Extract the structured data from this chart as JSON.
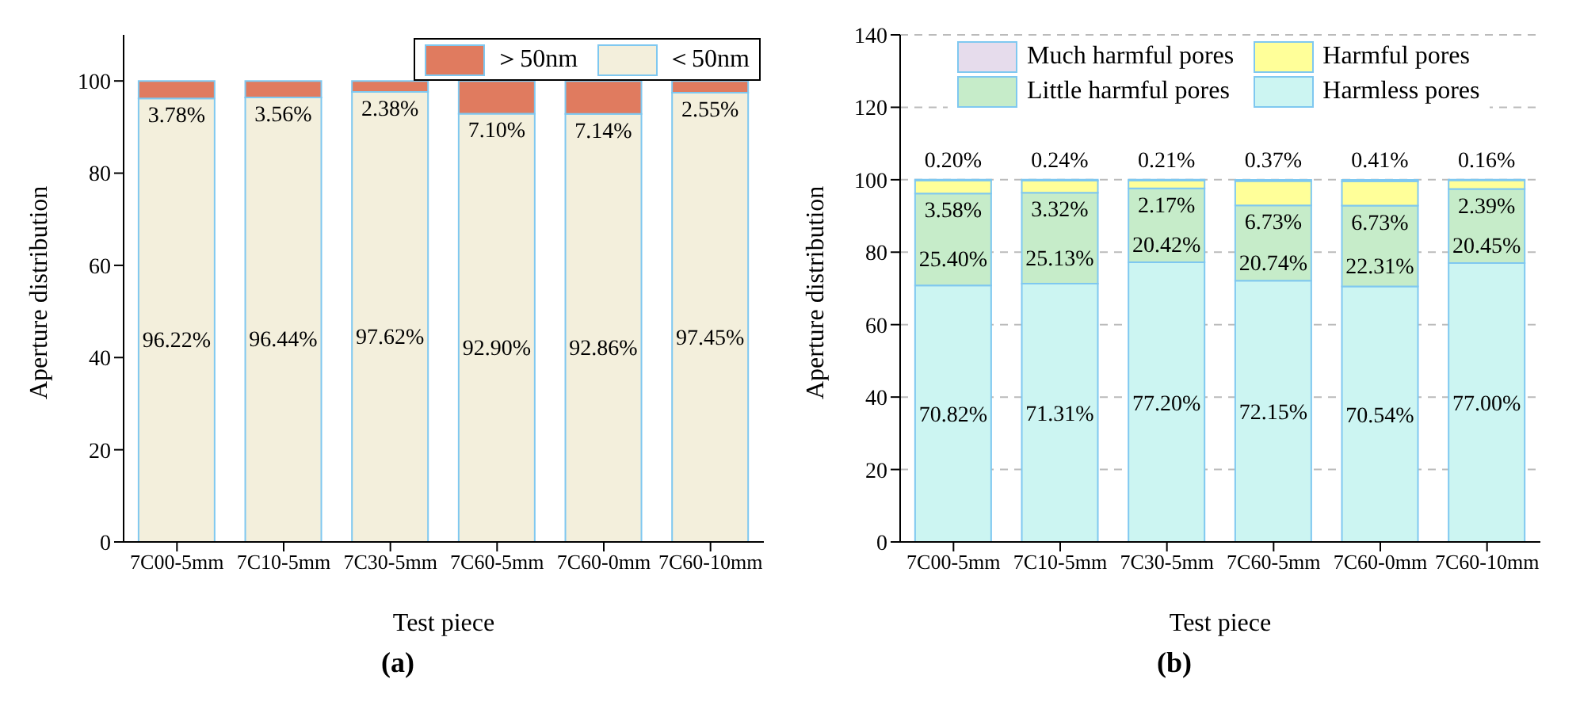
{
  "chart_data": [
    {
      "type": "bar",
      "stacked": true,
      "xlabel": "Test piece",
      "ylabel": "Aperture distribution",
      "categories": [
        "7C00-5mm",
        "7C10-5mm",
        "7C30-5mm",
        "7C60-5mm",
        "7C60-0mm",
        "7C60-10mm"
      ],
      "ylim": [
        0,
        110
      ],
      "yticks": [
        0,
        20,
        40,
        60,
        80,
        100
      ],
      "legend": "top right",
      "annotations": [
        "(a)"
      ],
      "series": [
        {
          "name": "＜50nm",
          "color": "#f3efdc",
          "values": [
            96.22,
            96.44,
            97.62,
            92.9,
            92.86,
            97.45
          ],
          "value_labels": [
            "96.22%",
            "96.44%",
            "97.62%",
            "92.90%",
            "92.86%",
            "97.45%"
          ]
        },
        {
          "name": "＞50nm",
          "color": "#e07b5f",
          "values": [
            3.78,
            3.56,
            2.38,
            7.1,
            7.14,
            2.55
          ],
          "value_labels": [
            "3.78%",
            "3.56%",
            "2.38%",
            "7.10%",
            "7.14%",
            "2.55%"
          ]
        }
      ]
    },
    {
      "type": "bar",
      "stacked": true,
      "xlabel": "Test piece",
      "ylabel": "Aperture distribution",
      "categories": [
        "7C00-5mm",
        "7C10-5mm",
        "7C30-5mm",
        "7C60-5mm",
        "7C60-0mm",
        "7C60-10mm"
      ],
      "ylim": [
        0,
        140
      ],
      "yticks": [
        0,
        20,
        40,
        60,
        80,
        100,
        120,
        140
      ],
      "grid": "y",
      "legend": "top",
      "annotations": [
        "(b)"
      ],
      "series": [
        {
          "name": "Harmless pores",
          "color": "#ccf5f2",
          "values": [
            70.82,
            71.31,
            77.2,
            72.15,
            70.54,
            77.0
          ],
          "value_labels": [
            "70.82%",
            "71.31%",
            "77.20%",
            "72.15%",
            "70.54%",
            "77.00%"
          ]
        },
        {
          "name": "Little harmful pores",
          "color": "#c6ecc9",
          "values": [
            25.4,
            25.13,
            20.42,
            20.74,
            22.31,
            20.45
          ],
          "value_labels": [
            "25.40%",
            "25.13%",
            "20.42%",
            "20.74%",
            "22.31%",
            "20.45%"
          ]
        },
        {
          "name": "Harmful pores",
          "color": "#ffff99",
          "values": [
            3.58,
            3.32,
            2.17,
            6.73,
            6.73,
            2.39
          ],
          "value_labels": [
            "3.58%",
            "3.32%",
            "2.17%",
            "6.73%",
            "6.73%",
            "2.39%"
          ]
        },
        {
          "name": "Much harmful pores",
          "color": "#e6dcec",
          "values": [
            0.2,
            0.24,
            0.21,
            0.37,
            0.41,
            0.16
          ],
          "value_labels": [
            "0.20%",
            "0.24%",
            "0.21%",
            "0.37%",
            "0.41%",
            "0.16%"
          ]
        }
      ]
    }
  ]
}
